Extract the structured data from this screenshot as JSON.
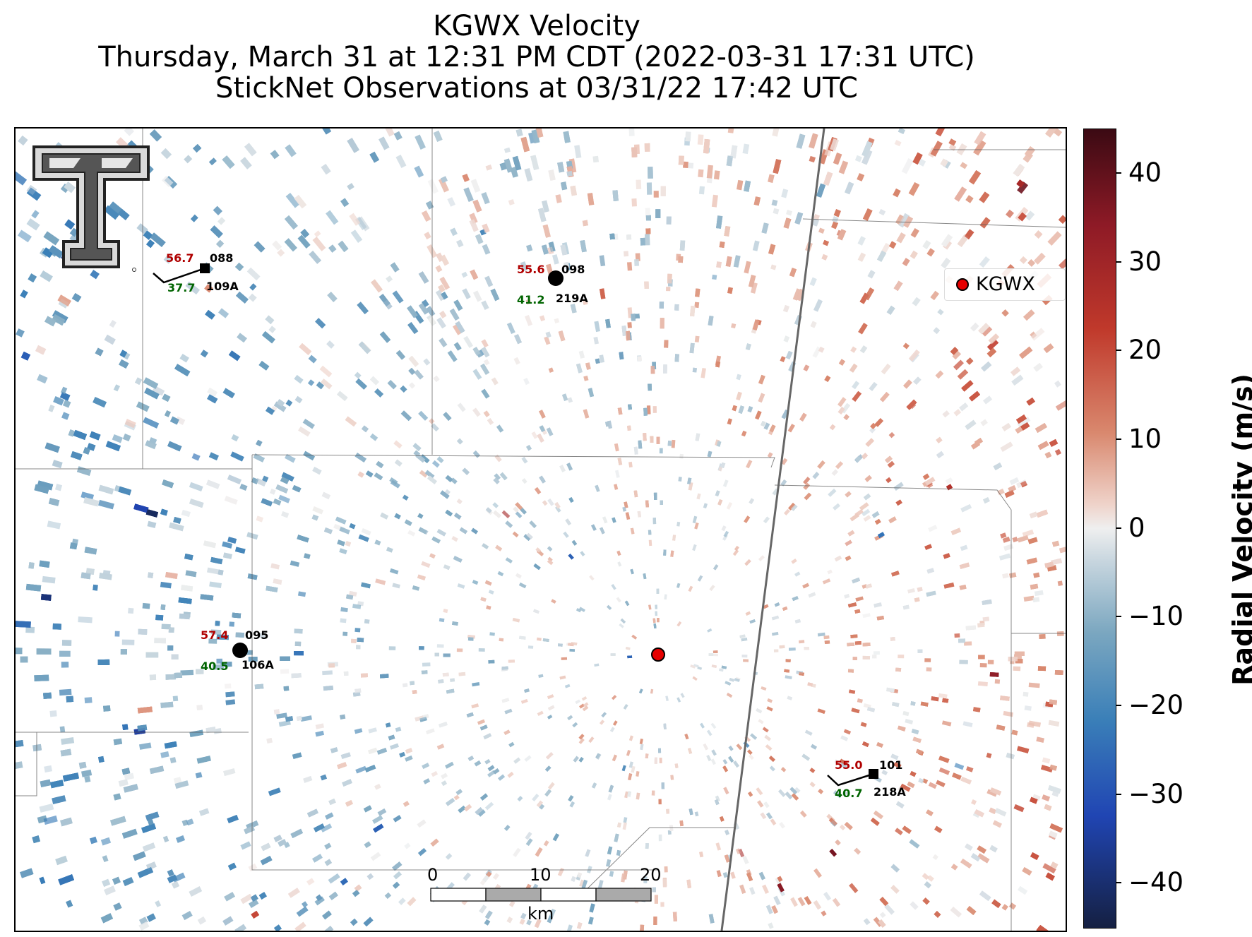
{
  "title": {
    "line1": "KGWX Velocity",
    "line2": "Thursday, March 31 at 12:31 PM CDT (2022-03-31 17:31 UTC)",
    "line3": "StickNet Observations at 03/31/22 17:42 UTC"
  },
  "legend": {
    "label": "KGWX",
    "marker_color": "#e60000"
  },
  "colorbar": {
    "title": "Radial Velocity (m/s)",
    "ticks": [
      "40",
      "30",
      "20",
      "10",
      "0",
      "−10",
      "−20",
      "−30",
      "−40"
    ],
    "range": [
      -45,
      45
    ]
  },
  "stations": [
    {
      "id": "109A",
      "temp": "56.7",
      "dew": "37.7",
      "dir": "088",
      "marker": "square"
    },
    {
      "id": "219A",
      "temp": "55.6",
      "dew": "41.2",
      "dir": "098",
      "marker": "circle"
    },
    {
      "id": "106A",
      "temp": "57.4",
      "dew": "40.5",
      "dir": "095",
      "marker": "circle"
    },
    {
      "id": "218A",
      "temp": "55.0",
      "dew": "40.7",
      "dir": "101",
      "marker": "square"
    }
  ],
  "scale_bar": {
    "labels": [
      "0",
      "10",
      "20"
    ],
    "unit": "km"
  },
  "logo": {
    "name": "texas-tech-double-t-logo"
  },
  "colors": {
    "inbound": "#3a7fb8",
    "outbound": "#c0392b",
    "zero": "#efefef"
  }
}
